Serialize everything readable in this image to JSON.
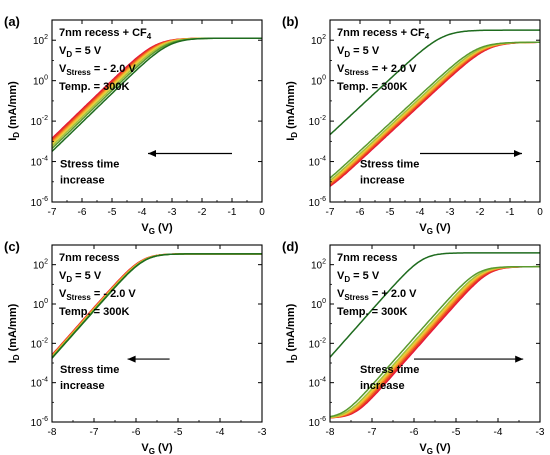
{
  "figure": {
    "colors": [
      "#1e6b1e",
      "#5a9a2e",
      "#a7c23c",
      "#e9cf3a",
      "#f6a62d",
      "#f26b1f",
      "#e83a25",
      "#e6163a"
    ]
  },
  "chart_data": [
    {
      "type": "line",
      "panel_label": "(a)",
      "xlabel": "VG (V)",
      "ylabel": "ID (mA/mm)",
      "xlim": [
        -7,
        0
      ],
      "ylim_log10": [
        -6,
        3
      ],
      "y_scale": "log",
      "xticks": [
        "-7",
        "-6",
        "-5",
        "-4",
        "-3",
        "-2",
        "-1",
        "0"
      ],
      "yticks": [
        "10-6",
        "10-4",
        "10-2",
        "100",
        "102"
      ],
      "annotations": [
        "7nm recess + CF4",
        "VD = 5 V",
        "VStress = - 2.0 V",
        "Temp. = 300K"
      ],
      "arrow_text": [
        "Stress time",
        "increase"
      ],
      "arrow_from": [
        -1.0,
        -3.6
      ],
      "arrow_to": [
        -3.8,
        -3.6
      ],
      "series": [
        {
          "vth": -3.1
        },
        {
          "vth": -3.2
        },
        {
          "vth": -3.28
        },
        {
          "vth": -3.35
        },
        {
          "vth": -3.4
        },
        {
          "vth": -3.45
        },
        {
          "vth": -3.5
        },
        {
          "vth": -3.55
        }
      ],
      "curve": {
        "floor_log10": -5.85,
        "on_log10": 2.1,
        "slope": 2.5
      }
    },
    {
      "type": "line",
      "panel_label": "(b)",
      "xlabel": "VG (V)",
      "ylabel": "ID (mA/mm)",
      "xlim": [
        -7,
        0
      ],
      "ylim_log10": [
        -6,
        3
      ],
      "y_scale": "log",
      "xticks": [
        "-7",
        "-6",
        "-5",
        "-4",
        "-3",
        "-2",
        "-1",
        "0"
      ],
      "yticks": [
        "10-6",
        "10-4",
        "10-2",
        "100",
        "102"
      ],
      "annotations": [
        "7nm recess + CF4",
        "VD = 5 V",
        "VStress = + 2.0 V",
        "Temp. = 300K"
      ],
      "arrow_text": [
        "Stress time",
        "increase"
      ],
      "arrow_from": [
        -4.0,
        -3.6
      ],
      "arrow_to": [
        -0.6,
        -3.6
      ],
      "series": [
        {
          "vth": -3.25,
          "on_log10": 2.5
        },
        {
          "vth": -2.1
        },
        {
          "vth": -2.0
        },
        {
          "vth": -1.95
        },
        {
          "vth": -1.9
        },
        {
          "vth": -1.85
        },
        {
          "vth": -1.8
        },
        {
          "vth": -1.75
        }
      ],
      "curve": {
        "floor_log10": -5.85,
        "on_log10": 1.9,
        "slope": 2.4
      }
    },
    {
      "type": "line",
      "panel_label": "(c)",
      "xlabel": "VG (V)",
      "ylabel": "ID (mA/mm)",
      "xlim": [
        -8,
        -3
      ],
      "ylim_log10": [
        -6,
        3
      ],
      "y_scale": "log",
      "xticks": [
        "-8",
        "-7",
        "-6",
        "-5",
        "-4",
        "-3"
      ],
      "yticks": [
        "10-6",
        "10-4",
        "10-2",
        "100",
        "102"
      ],
      "annotations": [
        "7nm recess",
        "VD = 5 V",
        "VStress = - 2.0 V",
        "Temp. = 300K"
      ],
      "arrow_text": [
        "Stress time",
        "increase"
      ],
      "arrow_from": [
        -5.2,
        -2.8
      ],
      "arrow_to": [
        -6.2,
        -2.8
      ],
      "series": [
        {
          "vth": -5.8
        },
        {
          "vth": -5.81
        },
        {
          "vth": -5.82
        },
        {
          "vth": -5.83
        },
        {
          "vth": -5.84
        },
        {
          "vth": -5.85
        },
        {
          "vth": -5.86
        },
        {
          "vth": -5.87
        }
      ],
      "curve": {
        "floor_log10": -5.7,
        "on_log10": 2.55,
        "slope": 4.2
      }
    },
    {
      "type": "line",
      "panel_label": "(d)",
      "xlabel": "VG (V)",
      "ylabel": "ID (mA/mm)",
      "xlim": [
        -8,
        -3
      ],
      "ylim_log10": [
        -6,
        3
      ],
      "y_scale": "log",
      "xticks": [
        "-8",
        "-7",
        "-6",
        "-5",
        "-4",
        "-3"
      ],
      "yticks": [
        "10-6",
        "10-4",
        "10-2",
        "100",
        "102"
      ],
      "annotations": [
        "7nm recess",
        "VD = 5 V",
        "VStress = + 2.0 V",
        "Temp. = 300K"
      ],
      "arrow_text": [
        "Stress time",
        "increase"
      ],
      "arrow_from": [
        -6.0,
        -2.8
      ],
      "arrow_to": [
        -3.4,
        -2.8
      ],
      "series": [
        {
          "vth": -5.8,
          "on_log10": 2.6
        },
        {
          "vth": -4.5
        },
        {
          "vth": -4.42
        },
        {
          "vth": -4.38
        },
        {
          "vth": -4.34
        },
        {
          "vth": -4.3
        },
        {
          "vth": -4.26
        },
        {
          "vth": -4.22
        }
      ],
      "curve": {
        "floor_log10": -5.8,
        "on_log10": 1.9,
        "slope": 4.2
      }
    }
  ]
}
